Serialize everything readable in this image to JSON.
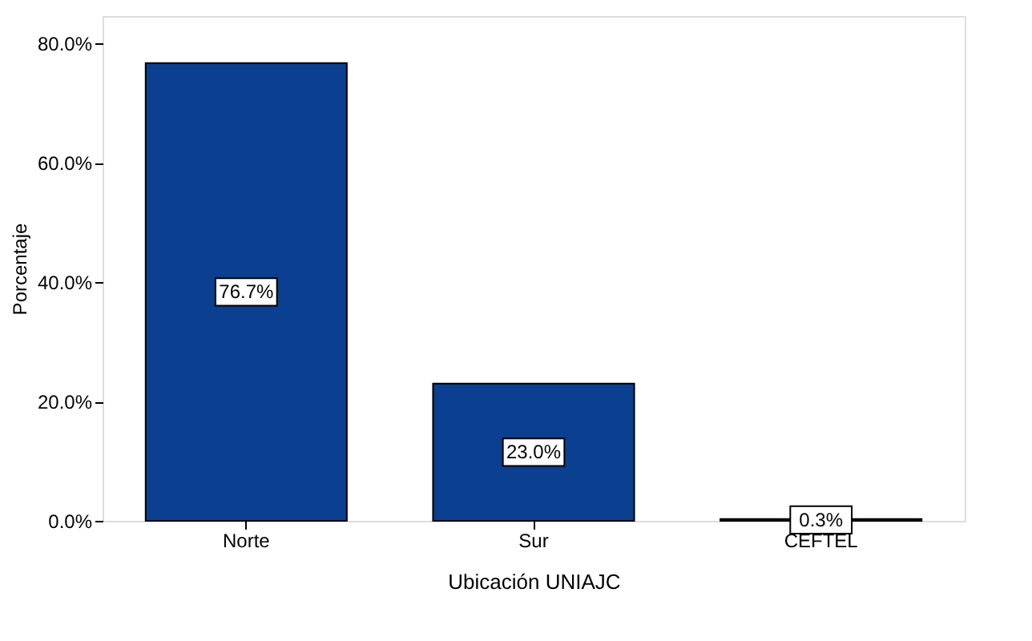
{
  "chart_data": {
    "type": "bar",
    "xlabel": "Ubicación UNIAJC",
    "ylabel": "Porcentaje",
    "categories": [
      "Norte",
      "Sur",
      "CEFTEL"
    ],
    "values": [
      76.7,
      23.0,
      0.3
    ],
    "value_labels": [
      "76.7%",
      "23.0%",
      "0.3%"
    ],
    "color": "#0b3f8f",
    "ylim": [
      0,
      84.6
    ],
    "yticks": [
      {
        "value": 0,
        "label": "0.0%"
      },
      {
        "value": 20,
        "label": "20.0%"
      },
      {
        "value": 40,
        "label": "40.0%"
      },
      {
        "value": 60,
        "label": "60.0%"
      },
      {
        "value": 80,
        "label": "80.0%"
      }
    ],
    "grid": false
  }
}
